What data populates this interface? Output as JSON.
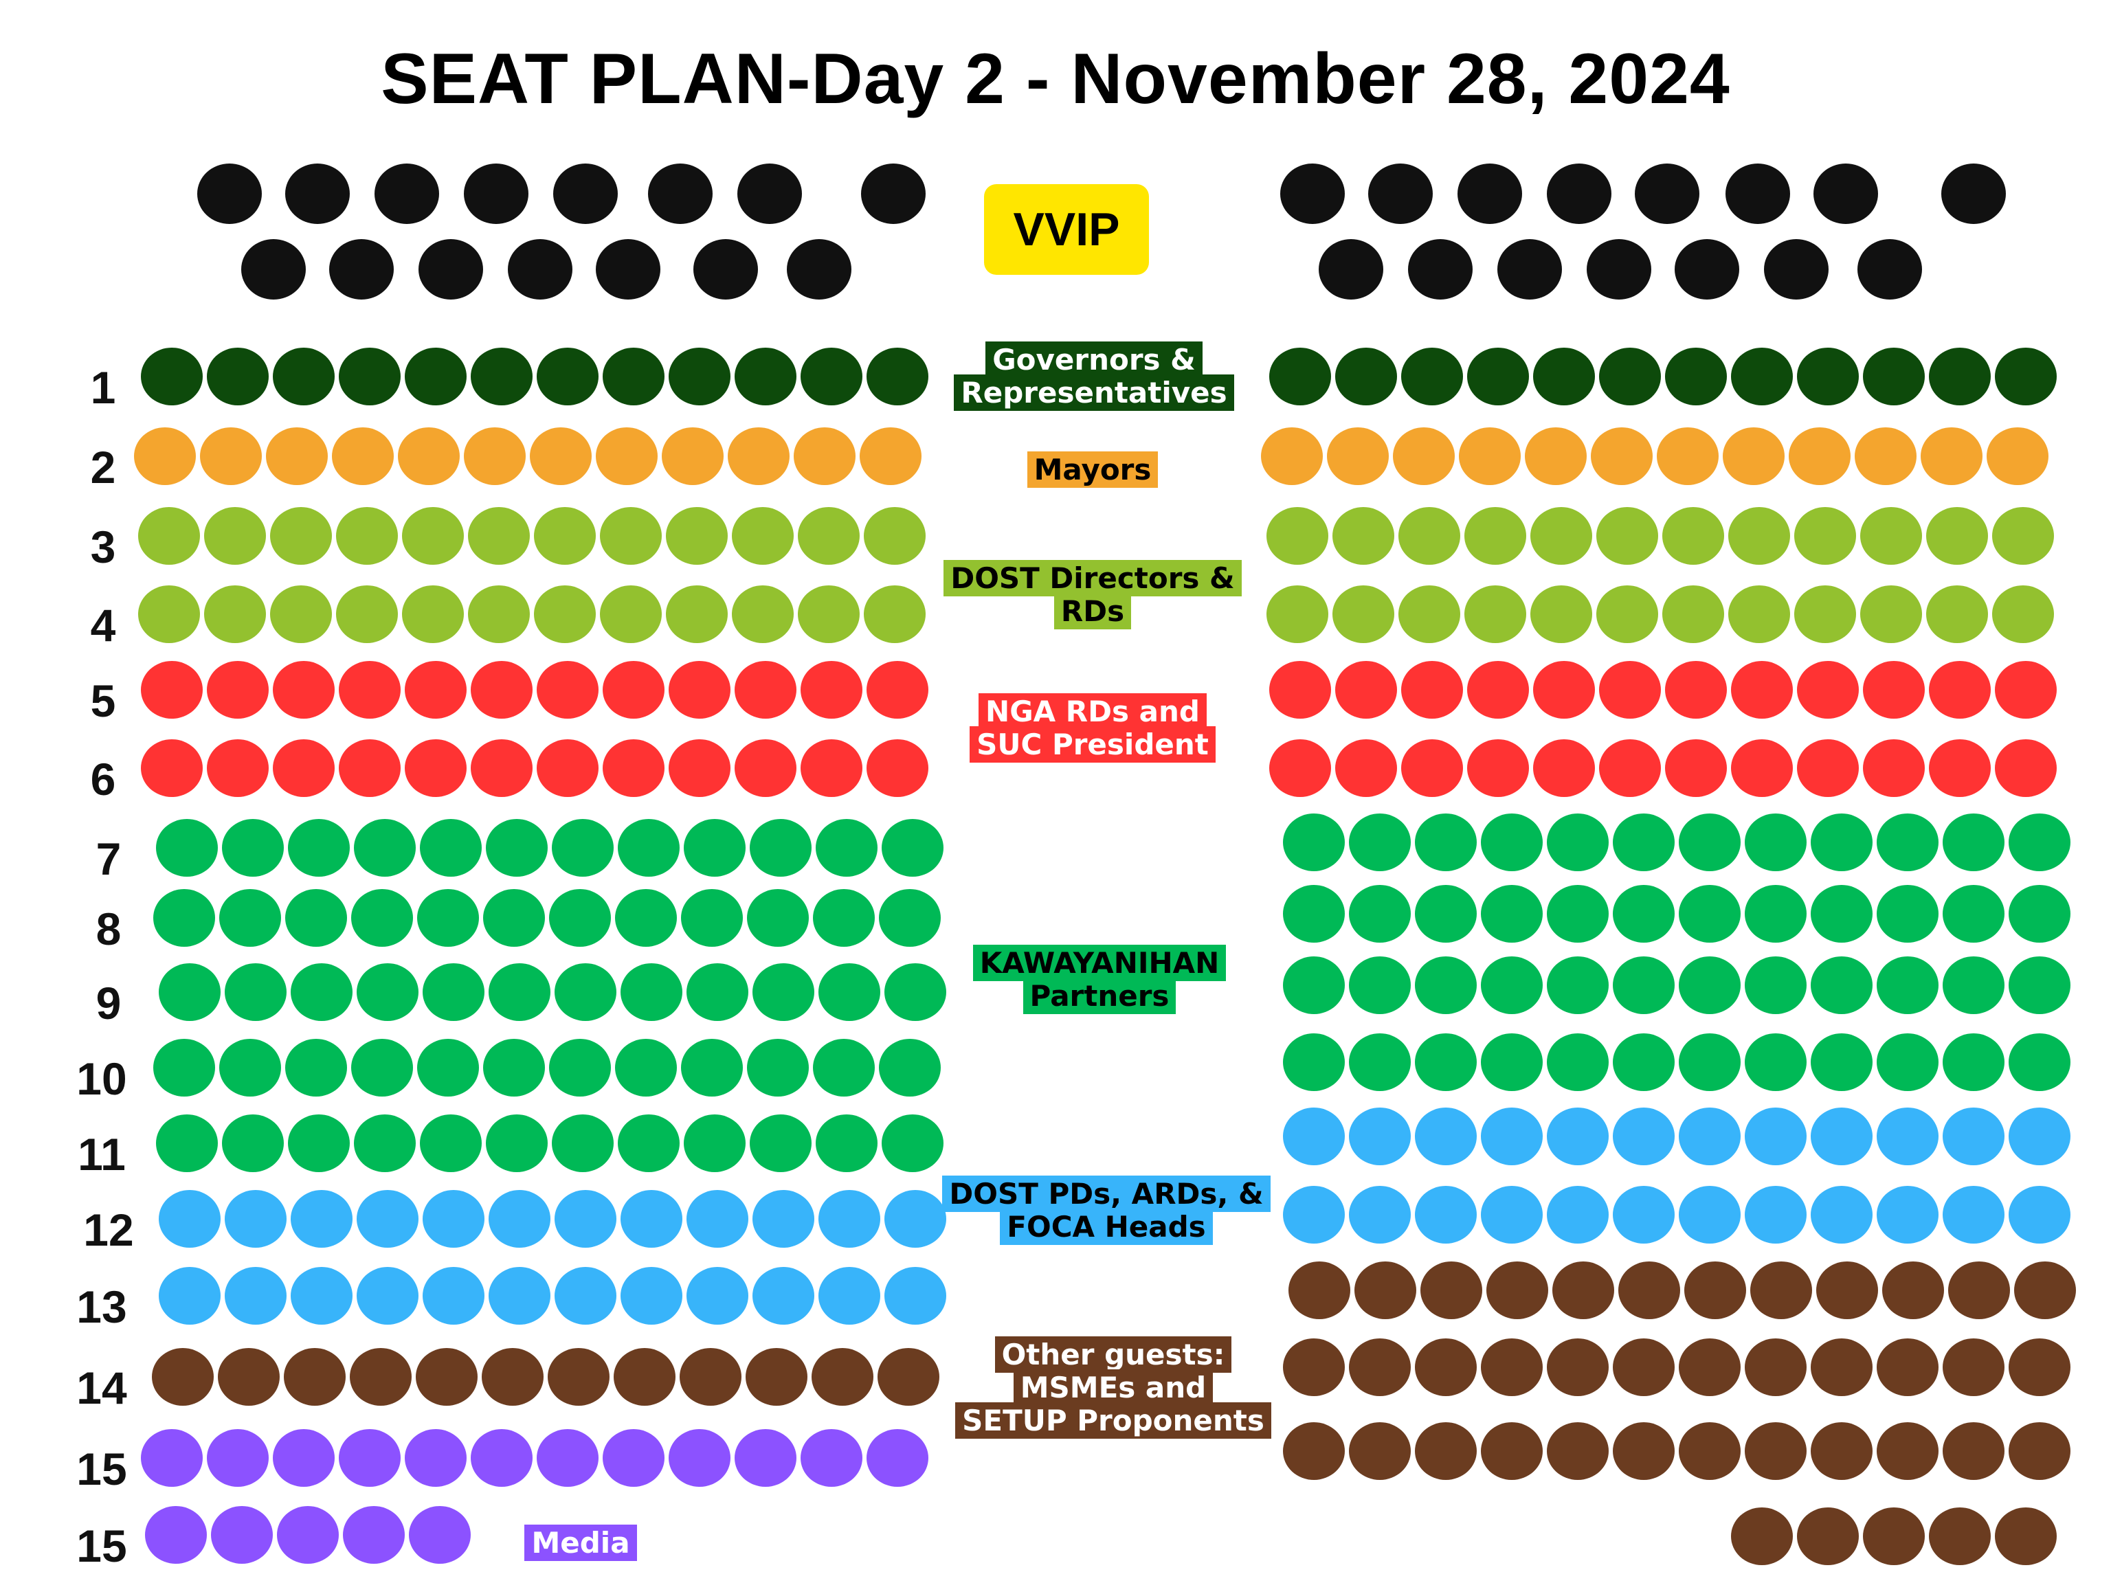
{
  "title": "SEAT PLAN-Day 2 - November 28, 2024",
  "vvip_label": "VVIP",
  "colors": {
    "vvip_seat": "#111111",
    "vvip_badge": "#FFE600",
    "governors": "#0D4A0B",
    "mayors": "#F4A52E",
    "dost_directors": "#93C12F",
    "nga": "#FF3333",
    "kawayanihan": "#00B956",
    "dost_pds": "#38B4FA",
    "other_guests": "#6B3C20",
    "media": "#8C52FF"
  },
  "row_labels": [
    "1",
    "2",
    "3",
    "4",
    "5",
    "6",
    "7",
    "8",
    "9",
    "10",
    "11",
    "12",
    "13",
    "14",
    "15",
    "15"
  ],
  "categories": {
    "governors": [
      "Governors &",
      "Representatives"
    ],
    "mayors": [
      "Mayors"
    ],
    "dost_directors": [
      "DOST Directors & RDs"
    ],
    "nga": [
      "NGA RDs and",
      "SUC President"
    ],
    "kawayanihan": [
      "KAWAYANIHAN",
      "Partners"
    ],
    "dost_pds": [
      "DOST PDs, ARDs, &",
      "FOCA Heads"
    ],
    "other_guests": [
      "Other guests:",
      "MSMEs and",
      "SETUP Proponents"
    ],
    "media": [
      "Media"
    ]
  },
  "seating": {
    "vvip_front_row_seats_per_side": 8,
    "vvip_back_row_seats_per_side": 7,
    "left_rows": [
      {
        "row": "1",
        "group": "governors",
        "seats": 12
      },
      {
        "row": "2",
        "group": "mayors",
        "seats": 12
      },
      {
        "row": "3",
        "group": "dost_directors",
        "seats": 12
      },
      {
        "row": "4",
        "group": "dost_directors",
        "seats": 12
      },
      {
        "row": "5",
        "group": "nga",
        "seats": 12
      },
      {
        "row": "6",
        "group": "nga",
        "seats": 12
      },
      {
        "row": "7",
        "group": "kawayanihan",
        "seats": 12
      },
      {
        "row": "8",
        "group": "kawayanihan",
        "seats": 12
      },
      {
        "row": "9",
        "group": "kawayanihan",
        "seats": 12
      },
      {
        "row": "10",
        "group": "kawayanihan",
        "seats": 12
      },
      {
        "row": "11",
        "group": "kawayanihan",
        "seats": 12
      },
      {
        "row": "12",
        "group": "dost_pds",
        "seats": 12
      },
      {
        "row": "13",
        "group": "dost_pds",
        "seats": 12
      },
      {
        "row": "14",
        "group": "other_guests",
        "seats": 12
      },
      {
        "row": "15",
        "group": "media",
        "seats": 12
      },
      {
        "row": "15",
        "group": "media",
        "seats": 5
      }
    ],
    "right_rows": [
      {
        "group": "governors",
        "seats": 12
      },
      {
        "group": "mayors",
        "seats": 12
      },
      {
        "group": "dost_directors",
        "seats": 12
      },
      {
        "group": "dost_directors",
        "seats": 12
      },
      {
        "group": "nga",
        "seats": 12
      },
      {
        "group": "nga",
        "seats": 12
      },
      {
        "group": "kawayanihan",
        "seats": 12
      },
      {
        "group": "kawayanihan",
        "seats": 12
      },
      {
        "group": "kawayanihan",
        "seats": 12
      },
      {
        "group": "kawayanihan",
        "seats": 12
      },
      {
        "group": "dost_pds",
        "seats": 12
      },
      {
        "group": "dost_pds",
        "seats": 12
      },
      {
        "group": "other_guests",
        "seats": 12
      },
      {
        "group": "other_guests",
        "seats": 12
      },
      {
        "group": "other_guests",
        "seats": 12
      },
      {
        "group": "other_guests",
        "seats": 5
      }
    ]
  }
}
